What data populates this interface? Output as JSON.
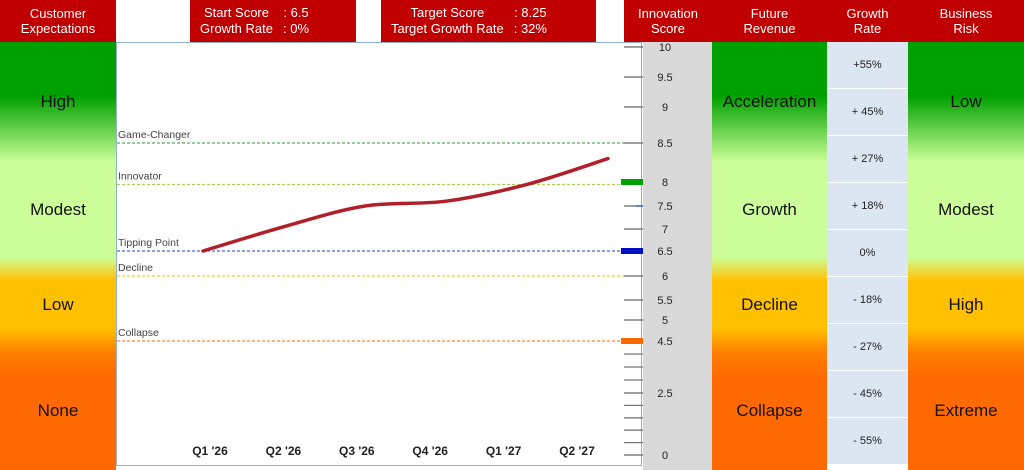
{
  "headers": {
    "customer_expectations": "Customer\nExpectations",
    "innovation_score": "Innovation\nScore",
    "future_revenue": "Future\nRevenue",
    "growth_rate": "Growth\nRate",
    "business_risk": "Business\nRisk"
  },
  "start_info": {
    "start_score_label": "Start Score",
    "start_score_value": ": 6.5",
    "growth_rate_label": "Growth Rate",
    "growth_rate_value": ": 0%"
  },
  "target_info": {
    "target_score_label": "Target Score",
    "target_score_value": ": 8.25",
    "target_growth_label": "Target Growth Rate",
    "target_growth_value": ": 32%"
  },
  "customer_expectations": [
    "High",
    "Modest",
    "Low",
    "None"
  ],
  "future_revenue": [
    "Acceleration",
    "Growth",
    "Decline",
    "Collapse"
  ],
  "business_risk": [
    "Low",
    "Modest",
    "High",
    "Extreme"
  ],
  "growth_rates": [
    "+55%",
    "+ 45%",
    "+ 27%",
    "+ 18%",
    "0%",
    "- 18%",
    "- 27%",
    "- 45%",
    "- 55%"
  ],
  "colors": {
    "header_red": "#c00000",
    "green": "#00a000",
    "light_green": "#ccff99",
    "amber": "#ffc000",
    "orange": "#ff6a00",
    "line": "#b0202a",
    "game_changer": "#2e9b2e",
    "innovator": "#9acd32",
    "tipping_point": "#1f3fbf",
    "decline": "#f0c000",
    "collapse": "#ff6a00",
    "marker_green": "#00a000",
    "marker_blue": "#0010c0",
    "marker_orange": "#ff6a00",
    "scale_bg": "#d9d9d9"
  },
  "chart_data": {
    "type": "line",
    "title": "",
    "xlabel": "",
    "ylabel": "Innovation Score",
    "categories": [
      "Q1 '26",
      "Q2 '26",
      "Q3 '26",
      "Q4 '26",
      "Q1 '27",
      "Q2 '27"
    ],
    "ylim": [
      0,
      10
    ],
    "y_tick_labels": [
      "10",
      "9.5",
      "9",
      "8.5",
      "8",
      "7.5",
      "7",
      "6.5",
      "6",
      "5.5",
      "5",
      "4.5",
      "2.5",
      "0"
    ],
    "series": [
      {
        "values": [
          6.5,
          7.05,
          7.5,
          7.6,
          7.95,
          8.3
        ]
      }
    ],
    "thresholds": [
      {
        "name": "Game-Changer",
        "value": 8.5,
        "color": "#2e9b2e"
      },
      {
        "name": "Innovator",
        "value": 7.95,
        "color": "#9acd32"
      },
      {
        "name": "Tipping Point",
        "value": 6.5,
        "color": "#1f3fbf"
      },
      {
        "name": "Decline",
        "value": 6.0,
        "color": "#f0c000"
      },
      {
        "name": "Collapse",
        "value": 4.5,
        "color": "#ff6a00"
      }
    ],
    "markers": [
      {
        "value": 8.0,
        "color": "#00a000"
      },
      {
        "value": 6.5,
        "color": "#0010c0"
      },
      {
        "value": 4.5,
        "color": "#ff6a00"
      }
    ],
    "grid": false
  }
}
